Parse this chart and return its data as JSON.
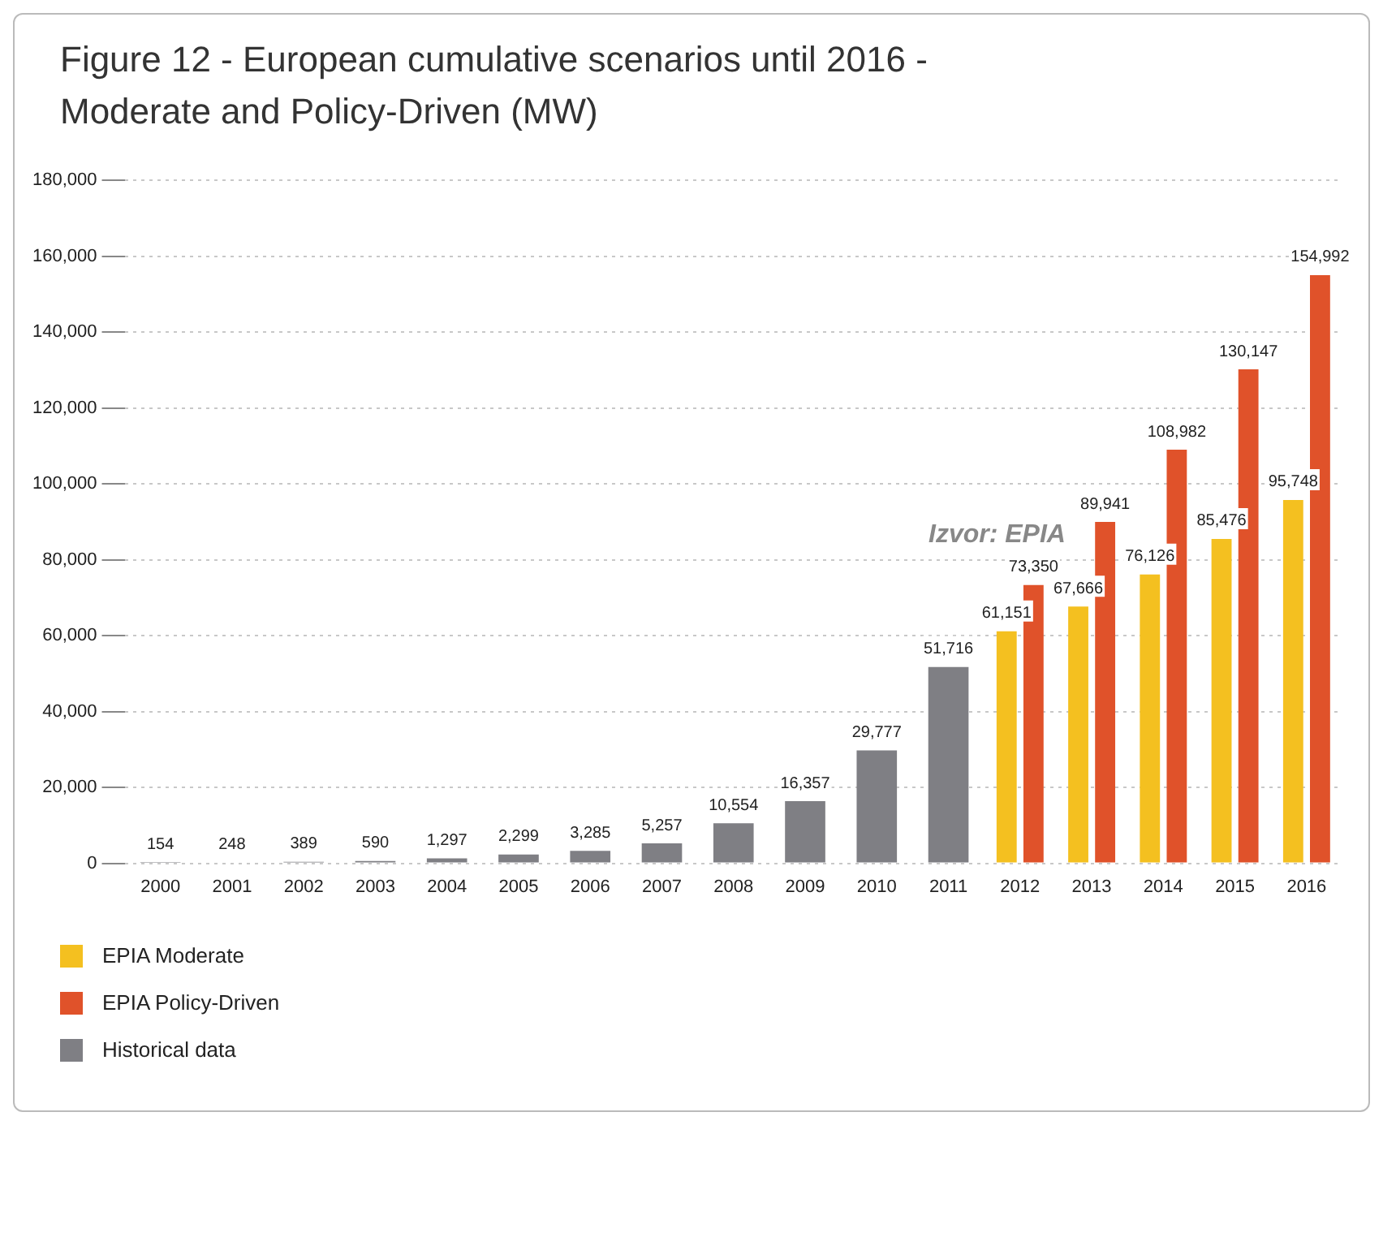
{
  "chart_data": {
    "type": "bar",
    "title": "Figure 12 - European cumulative scenarios until 2016 - Moderate and Policy-Driven (MW)",
    "categories": [
      "2000",
      "2001",
      "2002",
      "2003",
      "2004",
      "2005",
      "2006",
      "2007",
      "2008",
      "2009",
      "2010",
      "2011",
      "2012",
      "2013",
      "2014",
      "2015",
      "2016"
    ],
    "series": [
      {
        "name": "EPIA Moderate",
        "color": "#f4c020",
        "values": [
          null,
          null,
          null,
          null,
          null,
          null,
          null,
          null,
          null,
          null,
          null,
          null,
          61151,
          67666,
          76126,
          85476,
          95748
        ],
        "value_labels": [
          null,
          null,
          null,
          null,
          null,
          null,
          null,
          null,
          null,
          null,
          null,
          null,
          "61,151",
          "67,666",
          "76,126",
          "85,476",
          "95,748"
        ]
      },
      {
        "name": "EPIA Policy-Driven",
        "color": "#e0522a",
        "values": [
          null,
          null,
          null,
          null,
          null,
          null,
          null,
          null,
          null,
          null,
          null,
          null,
          73350,
          89941,
          108982,
          130147,
          154992
        ],
        "value_labels": [
          null,
          null,
          null,
          null,
          null,
          null,
          null,
          null,
          null,
          null,
          null,
          null,
          "73,350",
          "89,941",
          "108,982",
          "130,147",
          "154,992"
        ]
      },
      {
        "name": "Historical data",
        "color": "#7f7f84",
        "values": [
          154,
          248,
          389,
          590,
          1297,
          2299,
          3285,
          5257,
          10554,
          16357,
          29777,
          51716,
          null,
          null,
          null,
          null,
          null
        ],
        "value_labels": [
          "154",
          "248",
          "389",
          "590",
          "1,297",
          "2,299",
          "3,285",
          "5,257",
          "10,554",
          "16,357",
          "29,777",
          "51,716",
          null,
          null,
          null,
          null,
          null
        ]
      }
    ],
    "ylim": [
      0,
      180000
    ],
    "yticks": [
      0,
      {
        "value": 20000,
        "label": "20,000"
      },
      {
        "value": 40000,
        "label": "40,000"
      },
      {
        "value": 60000,
        "label": "60,000"
      },
      {
        "value": 80000,
        "label": "80,000"
      },
      {
        "value": 100000,
        "label": "100,000"
      },
      {
        "value": 120000,
        "label": "120,000"
      },
      {
        "value": 140000,
        "label": "140,000"
      },
      {
        "value": 160000,
        "label": "160,000"
      },
      {
        "value": 180000,
        "label": "180,000"
      }
    ],
    "grid": "y",
    "legend": "bottom left",
    "annotations": [
      "Izvor: EPIA"
    ]
  }
}
